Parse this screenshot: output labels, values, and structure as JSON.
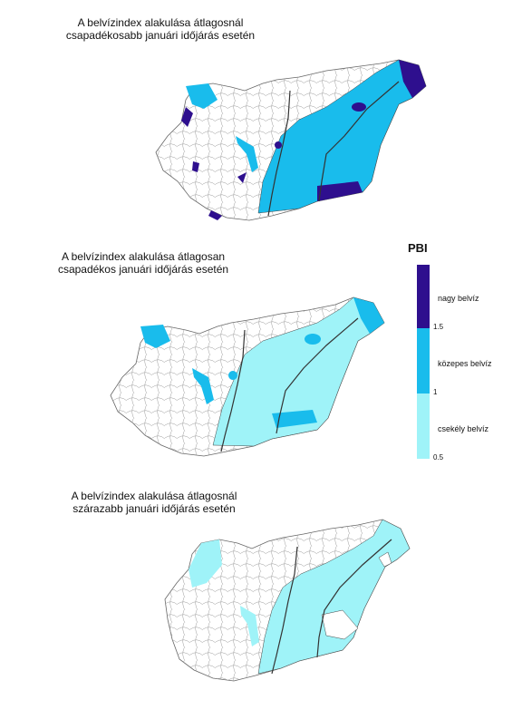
{
  "maps": [
    {
      "title_line1": "A belvízindex alakulása átlagosnál",
      "title_line2": "csapadékosabb januári időjárás esetén"
    },
    {
      "title_line1": "A belvízindex alakulása átlagosan",
      "title_line2": "csapadékos januári időjárás esetén"
    },
    {
      "title_line1": "A belvízindex alakulása átlagosnál",
      "title_line2": "szárazabb januári időjárás esetén"
    }
  ],
  "legend": {
    "title": "PBI",
    "classes": [
      {
        "label": "nagy belvíz",
        "color": "#2e0f8e"
      },
      {
        "label": "közepes belvíz",
        "color": "#19bcec"
      },
      {
        "label": "csekély belvíz",
        "color": "#9ff3f8"
      }
    ],
    "ticks": [
      "1.5",
      "1",
      "0.5"
    ]
  }
}
